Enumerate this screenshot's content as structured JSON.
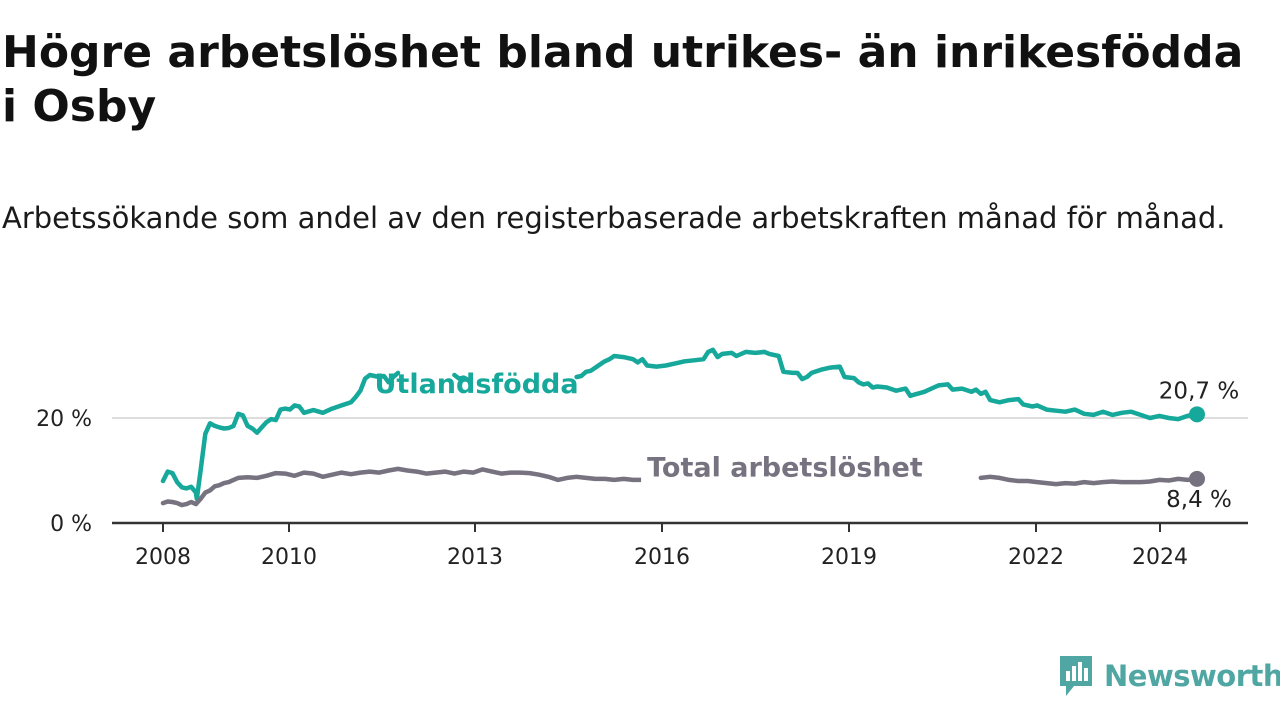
{
  "title": "Högre arbetslöshet bland utrikes- än inrikesfödda i Osby",
  "subtitle": "Arbetssökande som andel av den registerbaserade arbetskraften månad för månad.",
  "brand": {
    "name": "Newsworthy",
    "color": "#4fa6a2",
    "icon": "newsworthy-chart-bubble-icon"
  },
  "colors": {
    "utlandsfodda": "#16a89a",
    "total": "#77727f",
    "grid": "#dddddd",
    "axis": "#333333"
  },
  "chart_data": {
    "type": "line",
    "title": "Högre arbetslöshet bland utrikes- än inrikesfödda i Osby",
    "ylabel": "",
    "xlabel": "",
    "y_ticks": [
      {
        "value": 0,
        "label": "0 %"
      },
      {
        "value": 20,
        "label": "20 %"
      }
    ],
    "x_ticks": [
      {
        "value": 2008,
        "label": "2008"
      },
      {
        "value": 2010,
        "label": "2010"
      },
      {
        "value": 2013,
        "label": "2013"
      },
      {
        "value": 2016,
        "label": "2016"
      },
      {
        "value": 2019,
        "label": "2019"
      },
      {
        "value": 2022,
        "label": "2022"
      },
      {
        "value": 2024,
        "label": "2024"
      }
    ],
    "xlim": [
      2007.3,
      2025.2
    ],
    "ylim": [
      0,
      36
    ],
    "grid": true,
    "series": [
      {
        "name": "Utlandsfödda",
        "color": "#16a89a",
        "end_label": "20,7 %",
        "label_at": [
          2012.5,
          24.8
        ],
        "points": [
          [
            2008.0,
            8.0
          ],
          [
            2008.1,
            9.8
          ],
          [
            2008.2,
            9.5
          ],
          [
            2008.3,
            7.8
          ],
          [
            2008.4,
            6.8
          ],
          [
            2008.5,
            6.6
          ],
          [
            2008.6,
            6.9
          ],
          [
            2008.7,
            5.8
          ],
          [
            2008.72,
            4.6
          ],
          [
            2008.8,
            10.0
          ],
          [
            2008.9,
            17.0
          ],
          [
            2009.0,
            19.0
          ],
          [
            2009.1,
            18.5
          ],
          [
            2009.2,
            18.2
          ],
          [
            2009.3,
            18.0
          ],
          [
            2009.4,
            18.1
          ],
          [
            2009.5,
            18.5
          ],
          [
            2009.6,
            20.8
          ],
          [
            2009.7,
            20.5
          ],
          [
            2009.8,
            18.5
          ],
          [
            2009.9,
            18.0
          ],
          [
            2010.0,
            17.2
          ],
          [
            2010.1,
            18.2
          ],
          [
            2010.2,
            19.2
          ],
          [
            2010.3,
            19.8
          ],
          [
            2010.4,
            19.6
          ],
          [
            2010.5,
            21.6
          ],
          [
            2010.6,
            21.8
          ],
          [
            2010.7,
            21.6
          ],
          [
            2010.8,
            22.4
          ],
          [
            2010.9,
            22.2
          ],
          [
            2011.0,
            21.0
          ],
          [
            2011.2,
            21.5
          ],
          [
            2011.4,
            21.0
          ],
          [
            2011.6,
            21.8
          ],
          [
            2011.8,
            22.4
          ],
          [
            2012.0,
            23.0
          ],
          [
            2012.1,
            24.0
          ],
          [
            2012.2,
            25.2
          ],
          [
            2012.3,
            27.5
          ],
          [
            2012.4,
            28.2
          ],
          [
            2012.5,
            28.0
          ],
          [
            2012.6,
            27.8
          ],
          [
            2012.7,
            28.0
          ],
          [
            2012.8,
            26.8
          ],
          [
            2012.9,
            27.8
          ],
          [
            2013.0,
            28.6
          ],
          null,
          [
            2014.2,
            28.2
          ],
          [
            2014.3,
            27.5
          ],
          [
            2014.4,
            27.7
          ],
          [
            2014.5,
            27.2
          ],
          null,
          [
            2016.8,
            27.8
          ],
          [
            2016.9,
            28.0
          ],
          [
            2017.0,
            28.8
          ],
          [
            2017.1,
            29.0
          ],
          [
            2017.2,
            29.6
          ],
          [
            2017.3,
            30.2
          ],
          [
            2017.4,
            30.8
          ],
          [
            2017.5,
            31.2
          ],
          [
            2017.6,
            31.8
          ],
          [
            2017.8,
            31.6
          ],
          [
            2018.0,
            31.2
          ],
          [
            2018.1,
            30.6
          ],
          [
            2018.2,
            31.2
          ],
          [
            2018.3,
            30.0
          ],
          [
            2018.5,
            29.8
          ],
          [
            2018.7,
            30.0
          ],
          [
            2018.9,
            30.4
          ],
          [
            2019.1,
            30.8
          ],
          [
            2019.3,
            31.0
          ],
          [
            2019.5,
            31.2
          ],
          [
            2019.6,
            32.6
          ],
          [
            2019.7,
            33.0
          ],
          [
            2019.8,
            31.6
          ],
          [
            2019.9,
            32.2
          ],
          [
            2020.1,
            32.4
          ],
          [
            2020.2,
            31.8
          ],
          [
            2020.4,
            32.6
          ],
          [
            2020.6,
            32.4
          ],
          [
            2020.8,
            32.6
          ],
          [
            2020.9,
            32.2
          ],
          [
            2021.1,
            31.8
          ],
          [
            2021.2,
            28.8
          ],
          [
            2021.4,
            28.6
          ],
          [
            2021.5,
            28.6
          ],
          [
            2021.6,
            27.4
          ],
          [
            2021.7,
            27.8
          ],
          [
            2021.8,
            28.6
          ],
          [
            2022.0,
            29.2
          ],
          [
            2022.2,
            29.6
          ],
          [
            2022.4,
            29.8
          ],
          [
            2022.5,
            27.8
          ],
          [
            2022.7,
            27.6
          ],
          [
            2022.8,
            26.8
          ],
          [
            2022.9,
            26.4
          ],
          [
            2023.0,
            26.6
          ],
          [
            2023.1,
            25.8
          ],
          [
            2023.2,
            26.0
          ],
          [
            2023.4,
            25.8
          ],
          [
            2023.6,
            25.2
          ],
          [
            2023.8,
            25.6
          ],
          [
            2023.9,
            24.2
          ],
          [
            2024.0,
            24.5
          ],
          [
            2024.2,
            25.0
          ],
          [
            2024.4,
            25.8
          ],
          [
            2024.5,
            26.2
          ],
          [
            2024.7,
            26.4
          ],
          [
            2024.8,
            25.4
          ],
          [
            2025.0,
            25.6
          ],
          [
            2025.2,
            25.0
          ],
          [
            2025.3,
            25.4
          ],
          [
            2025.4,
            24.6
          ],
          [
            2025.5,
            25.0
          ],
          [
            2025.6,
            23.4
          ],
          [
            2025.8,
            23.0
          ],
          [
            2026.0,
            23.4
          ],
          [
            2026.2,
            23.6
          ],
          [
            2026.3,
            22.6
          ],
          [
            2026.5,
            22.2
          ],
          [
            2026.6,
            22.4
          ],
          [
            2026.8,
            21.6
          ],
          [
            2027.0,
            21.4
          ],
          [
            2027.2,
            21.2
          ],
          [
            2027.4,
            21.6
          ],
          [
            2027.6,
            20.8
          ],
          [
            2027.8,
            20.6
          ],
          [
            2028.0,
            21.2
          ],
          [
            2028.2,
            20.6
          ],
          [
            2028.4,
            21.0
          ],
          [
            2028.6,
            21.2
          ],
          [
            2028.8,
            20.6
          ],
          [
            2029.0,
            20.0
          ],
          [
            2029.2,
            20.4
          ],
          [
            2029.4,
            20.0
          ],
          [
            2029.6,
            19.8
          ],
          [
            2029.8,
            20.4
          ],
          [
            2030.0,
            20.7
          ]
        ]
      },
      {
        "name": "Total arbetslöshet",
        "color": "#77727f",
        "end_label": "8,4 %",
        "label_at": [
          2018.3,
          8.9
        ],
        "points": [
          [
            2008.0,
            3.8
          ],
          [
            2008.1,
            4.1
          ],
          [
            2008.2,
            4.0
          ],
          [
            2008.3,
            3.8
          ],
          [
            2008.4,
            3.4
          ],
          [
            2008.5,
            3.6
          ],
          [
            2008.6,
            4.0
          ],
          [
            2008.7,
            3.6
          ],
          [
            2008.8,
            4.6
          ],
          [
            2008.9,
            5.8
          ],
          [
            2009.0,
            6.2
          ],
          [
            2009.1,
            7.0
          ],
          [
            2009.2,
            7.2
          ],
          [
            2009.3,
            7.6
          ],
          [
            2009.4,
            7.8
          ],
          [
            2009.5,
            8.2
          ],
          [
            2009.6,
            8.6
          ],
          [
            2009.8,
            8.7
          ],
          [
            2010.0,
            8.6
          ],
          [
            2010.2,
            9.0
          ],
          [
            2010.4,
            9.5
          ],
          [
            2010.6,
            9.4
          ],
          [
            2010.8,
            9.0
          ],
          [
            2011.0,
            9.6
          ],
          [
            2011.2,
            9.4
          ],
          [
            2011.4,
            8.8
          ],
          [
            2011.6,
            9.2
          ],
          [
            2011.8,
            9.6
          ],
          [
            2012.0,
            9.3
          ],
          [
            2012.2,
            9.6
          ],
          [
            2012.4,
            9.8
          ],
          [
            2012.6,
            9.6
          ],
          [
            2012.8,
            10.0
          ],
          [
            2013.0,
            10.3
          ],
          [
            2013.2,
            10.0
          ],
          [
            2013.4,
            9.8
          ],
          [
            2013.6,
            9.4
          ],
          [
            2013.8,
            9.6
          ],
          [
            2014.0,
            9.8
          ],
          [
            2014.2,
            9.4
          ],
          [
            2014.4,
            9.8
          ],
          [
            2014.6,
            9.6
          ],
          [
            2014.8,
            10.2
          ],
          [
            2015.0,
            9.8
          ],
          [
            2015.2,
            9.4
          ],
          [
            2015.4,
            9.6
          ],
          [
            2015.6,
            9.6
          ],
          [
            2015.8,
            9.5
          ],
          [
            2016.0,
            9.2
          ],
          [
            2016.2,
            8.8
          ],
          [
            2016.4,
            8.2
          ],
          [
            2016.6,
            8.6
          ],
          [
            2016.8,
            8.8
          ],
          [
            2017.0,
            8.6
          ],
          [
            2017.2,
            8.4
          ],
          [
            2017.4,
            8.4
          ],
          [
            2017.6,
            8.2
          ],
          [
            2017.8,
            8.4
          ],
          [
            2018.0,
            8.2
          ],
          [
            2018.2,
            8.2
          ],
          [
            2018.4,
            7.8
          ],
          [
            2018.6,
            8.0
          ],
          [
            2018.8,
            8.2
          ],
          null,
          [
            2019.8,
            8.5
          ],
          [
            2020.0,
            8.3
          ],
          null,
          [
            2025.4,
            8.6
          ],
          [
            2025.6,
            8.8
          ],
          [
            2025.8,
            8.6
          ],
          [
            2026.0,
            8.2
          ],
          [
            2026.2,
            8.0
          ],
          [
            2026.4,
            8.0
          ],
          [
            2026.6,
            7.8
          ],
          [
            2026.8,
            7.6
          ],
          [
            2027.0,
            7.4
          ],
          [
            2027.2,
            7.6
          ],
          [
            2027.4,
            7.5
          ],
          [
            2027.6,
            7.8
          ],
          [
            2027.8,
            7.6
          ],
          [
            2028.0,
            7.8
          ],
          [
            2028.2,
            7.9
          ],
          [
            2028.4,
            7.8
          ],
          [
            2028.6,
            7.8
          ],
          [
            2028.8,
            7.8
          ],
          [
            2029.0,
            7.9
          ],
          [
            2029.2,
            8.2
          ],
          [
            2029.4,
            8.1
          ],
          [
            2029.6,
            8.4
          ],
          [
            2029.8,
            8.2
          ],
          [
            2030.0,
            8.4
          ]
        ]
      }
    ]
  }
}
